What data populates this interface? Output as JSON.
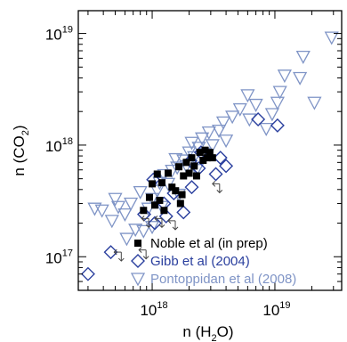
{
  "chart_data": {
    "type": "scatter",
    "xlabel": {
      "pre": "n (H",
      "sub": "2",
      "post": "O)"
    },
    "ylabel": {
      "pre": "n (CO",
      "sub": "2",
      "post": ")"
    },
    "log_x": true,
    "log_y": true,
    "xlim": [
      2.5e+17,
      3.5e+19
    ],
    "ylim": [
      5e+16,
      1.6e+19
    ],
    "x_ticks": [
      {
        "value": 1e+18,
        "base": "10",
        "exp": "18"
      },
      {
        "value": 1e+19,
        "base": "10",
        "exp": "19"
      }
    ],
    "y_ticks": [
      {
        "value": 1e+17,
        "base": "10",
        "exp": "17"
      },
      {
        "value": 1e+18,
        "base": "10",
        "exp": "18"
      },
      {
        "value": 1e+19,
        "base": "10",
        "exp": "19"
      }
    ],
    "grid": false,
    "legend_position": "bottom-right",
    "series": [
      {
        "name": "Noble et al (in prep)",
        "marker": "filled-square",
        "color": "#000000",
        "points": [
          [
            8.5e+17,
            2.6e+17
          ],
          [
            9.5e+17,
            3.4e+17
          ],
          [
            1e+18,
            4.5e+17
          ],
          [
            1.05e+18,
            2.9e+17
          ],
          [
            1.1e+18,
            5.5e+17
          ],
          [
            1.15e+18,
            3.2e+17
          ],
          [
            1.2e+18,
            4.6e+17
          ],
          [
            1.25e+18,
            2.6e+17
          ],
          [
            1.35e+18,
            5.6e+17
          ],
          [
            1.45e+18,
            4.2e+17
          ],
          [
            1.55e+18,
            3.9e+17
          ],
          [
            1.65e+18,
            6.4e+17
          ],
          [
            1.75e+18,
            3.6e+17
          ],
          [
            1.8e+18,
            5.3e+17
          ],
          [
            1.9e+18,
            7e+17
          ],
          [
            2e+18,
            5.6e+17
          ],
          [
            2.1e+18,
            7.7e+17
          ],
          [
            2.2e+18,
            6.5e+17
          ],
          [
            2.3e+18,
            5.3e+17
          ],
          [
            2.45e+18,
            8.6e+17
          ],
          [
            2.6e+18,
            7.3e+17
          ],
          [
            2.7e+18,
            9e+17
          ],
          [
            2.8e+18,
            7.7e+17
          ],
          [
            2.95e+18,
            8.6e+17
          ],
          [
            3.1e+18,
            7.7e+17
          ],
          [
            1.7e+18,
            3e+17
          ]
        ]
      },
      {
        "name": "Gibb et al (2004)",
        "marker": "open-diamond",
        "color": "#2a3f9e",
        "points": [
          [
            3e+17,
            7e+16
          ],
          [
            4.6e+17,
            1.1e+17
          ],
          [
            8.6e+17,
            2.4e+17
          ],
          [
            1.02e+18,
            4.9e+17
          ],
          [
            1.05e+18,
            2e+17
          ],
          [
            1.25e+18,
            3e+17
          ],
          [
            1.3e+18,
            2.3e+17
          ],
          [
            1.5e+18,
            3.7e+17
          ],
          [
            1.8e+18,
            2.5e+17
          ],
          [
            2.05e+18,
            7.2e+17
          ],
          [
            2.1e+18,
            4.2e+17
          ],
          [
            2.4e+18,
            6.2e+17
          ],
          [
            2.5e+18,
            8.6e+17
          ],
          [
            3.3e+18,
            5.5e+17
          ],
          [
            3.6e+18,
            7.7e+17
          ],
          [
            4e+18,
            6.5e+17
          ],
          [
            7.3e+18,
            1.7e+18
          ],
          [
            1.05e+19,
            1.5e+18
          ]
        ]
      },
      {
        "name": "Pontoppidan et al (2008)",
        "marker": "open-triangle-down",
        "color": "#7f94c6",
        "points": [
          [
            3.4e+17,
            2.7e+17
          ],
          [
            3.9e+17,
            2.6e+17
          ],
          [
            4.7e+17,
            2.1e+17
          ],
          [
            5e+17,
            3.3e+17
          ],
          [
            5.3e+17,
            2.8e+17
          ],
          [
            6e+17,
            2.4e+17
          ],
          [
            6.2e+17,
            1.45e+17
          ],
          [
            6.7e+17,
            3e+17
          ],
          [
            7.3e+17,
            1.75e+17
          ],
          [
            8e+17,
            3.8e+17
          ],
          [
            8.5e+17,
            1.7e+17
          ],
          [
            9.3e+17,
            2.7e+17
          ],
          [
            1e+18,
            3.3e+17
          ],
          [
            1e+18,
            1.85e+17
          ],
          [
            1.1e+18,
            3.9e+17
          ],
          [
            1.15e+18,
            4.6e+17
          ],
          [
            1.2e+18,
            2.8e+17
          ],
          [
            1.25e+18,
            5.4e+17
          ],
          [
            1.35e+18,
            4.5e+17
          ],
          [
            1.45e+18,
            5.9e+17
          ],
          [
            1.55e+18,
            7.5e+17
          ],
          [
            1.6e+18,
            6.3e+17
          ],
          [
            1.65e+18,
            3.6e+17
          ],
          [
            1.8e+18,
            7.3e+17
          ],
          [
            1.9e+18,
            6.5e+17
          ],
          [
            2e+18,
            8.6e+17
          ],
          [
            2.1e+18,
            1.05e+18
          ],
          [
            2.2e+18,
            7.8e+17
          ],
          [
            2.3e+18,
            6e+17
          ],
          [
            2.4e+18,
            9.5e+17
          ],
          [
            2.55e+18,
            1.15e+18
          ],
          [
            2.7e+18,
            8.4e+17
          ],
          [
            2.9e+18,
            1.3e+18
          ],
          [
            3.1e+18,
            1e+18
          ],
          [
            3.5e+18,
            1.35e+18
          ],
          [
            3.8e+18,
            1.6e+18
          ],
          [
            4e+18,
            1.1e+18
          ],
          [
            4.5e+18,
            1.8e+18
          ],
          [
            5.2e+18,
            2.1e+18
          ],
          [
            6e+18,
            2.8e+18
          ],
          [
            6.2e+18,
            1.7e+18
          ],
          [
            7e+18,
            2.3e+18
          ],
          [
            8.5e+18,
            1.4e+18
          ],
          [
            9.5e+18,
            1.9e+18
          ],
          [
            1.05e+19,
            2.4e+18
          ],
          [
            1.1e+19,
            3e+18
          ],
          [
            1.2e+19,
            4.2e+18
          ],
          [
            1.6e+19,
            4e+18
          ],
          [
            1.7e+19,
            6.2e+18
          ],
          [
            2.9e+19,
            9.2e+18
          ],
          [
            2.1e+19,
            2.4e+18
          ]
        ]
      },
      {
        "name": "",
        "marker": "upper-limit",
        "color": "#444444",
        "points": [
          [
            4.9e+17,
            1.1e+17
          ],
          [
            7.8e+17,
            1.15e+17
          ],
          [
            8.2e+17,
            2.2e+17
          ],
          [
            1.05e+18,
            2.2e+17
          ],
          [
            1.35e+18,
            2.1e+17
          ],
          [
            3.1e+18,
            4.5e+17
          ]
        ]
      }
    ]
  }
}
